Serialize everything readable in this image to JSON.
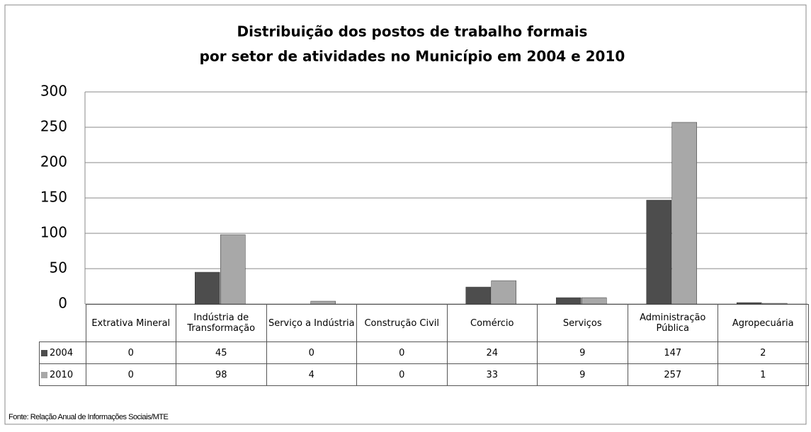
{
  "chart_data": {
    "type": "bar",
    "title": [
      "Distribuição  dos postos de trabalho formais",
      "por setor de atividades no Município em 2004 e 2010"
    ],
    "categories": [
      "Extrativa Mineral",
      "Indústria de Transformação",
      "Serviço a Indústria",
      "Construção Civil",
      "Comércio",
      "Serviços",
      "Administração Pública",
      "Agropecuária"
    ],
    "series": [
      {
        "name": "2004",
        "color": "#4d4d4d",
        "values": [
          0,
          45,
          0,
          0,
          24,
          9,
          147,
          2
        ]
      },
      {
        "name": "2010",
        "color": "#a8a8a8",
        "values": [
          0,
          98,
          4,
          0,
          33,
          9,
          257,
          1
        ]
      }
    ],
    "ylim": [
      0,
      300
    ],
    "yticks": [
      0,
      50,
      100,
      150,
      200,
      250,
      300
    ],
    "grid": true,
    "source": "Fonte: Relação Anual de Informações Sociais/MTE"
  }
}
